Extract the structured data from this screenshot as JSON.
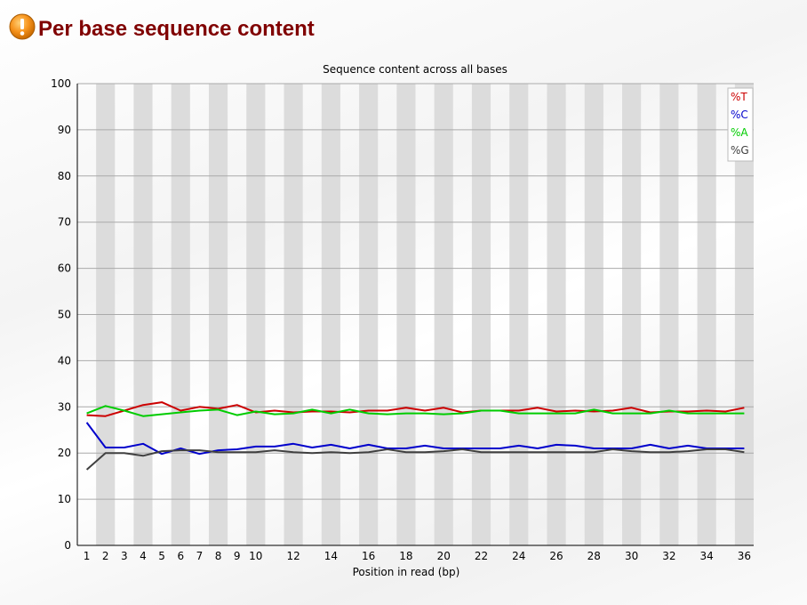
{
  "header": {
    "title": "Per base sequence content",
    "icon": "warning-icon"
  },
  "chart_data": {
    "type": "line",
    "title": "Sequence content across all bases",
    "xlabel": "Position in read (bp)",
    "ylabel": "",
    "ylim": [
      0,
      100
    ],
    "yticks": [
      0,
      10,
      20,
      30,
      40,
      50,
      60,
      70,
      80,
      90,
      100
    ],
    "categories": [
      "1",
      "2",
      "3",
      "4",
      "5",
      "6",
      "7",
      "8",
      "9",
      "10",
      "11",
      "12",
      "13",
      "14",
      "15",
      "16",
      "17",
      "18",
      "19",
      "20",
      "21",
      "22",
      "23",
      "24",
      "25",
      "26",
      "27",
      "28",
      "29",
      "30",
      "31",
      "32",
      "33",
      "34",
      "35",
      "36"
    ],
    "tick_labels": [
      "1",
      "2",
      "3",
      "4",
      "5",
      "6",
      "7",
      "8",
      "9",
      "10",
      "",
      "12",
      "",
      "14",
      "",
      "16",
      "",
      "18",
      "",
      "20",
      "",
      "22",
      "",
      "24",
      "",
      "26",
      "",
      "28",
      "",
      "30",
      "",
      "32",
      "",
      "34",
      "",
      "36"
    ],
    "grid": true,
    "legend_position": "top-right",
    "series": [
      {
        "name": "%T",
        "color": "#cc0000",
        "values": [
          28.2,
          28.0,
          29.2,
          30.4,
          31.0,
          29.2,
          30.0,
          29.6,
          30.4,
          28.8,
          29.2,
          28.8,
          29.0,
          29.0,
          28.8,
          29.2,
          29.2,
          29.8,
          29.2,
          29.8,
          28.8,
          29.2,
          29.2,
          29.2,
          29.8,
          29.0,
          29.2,
          29.0,
          29.2,
          29.8,
          28.8,
          29.0,
          29.0,
          29.2,
          29.0,
          29.8
        ]
      },
      {
        "name": "%C",
        "color": "#0000cc",
        "values": [
          26.6,
          21.2,
          21.2,
          22.0,
          19.8,
          21.0,
          19.8,
          20.6,
          20.8,
          21.4,
          21.4,
          22.0,
          21.2,
          21.8,
          21.0,
          21.8,
          21.0,
          21.0,
          21.6,
          21.0,
          21.0,
          21.0,
          21.0,
          21.6,
          21.0,
          21.8,
          21.6,
          21.0,
          21.0,
          21.0,
          21.8,
          21.0,
          21.6,
          21.0,
          21.0,
          21.0
        ]
      },
      {
        "name": "%A",
        "color": "#00cc00",
        "values": [
          28.6,
          30.2,
          29.2,
          28.0,
          28.4,
          28.8,
          29.2,
          29.4,
          28.2,
          29.0,
          28.4,
          28.6,
          29.4,
          28.6,
          29.4,
          28.6,
          28.4,
          28.6,
          28.6,
          28.4,
          28.6,
          29.2,
          29.2,
          28.6,
          28.6,
          28.6,
          28.6,
          29.4,
          28.6,
          28.6,
          28.6,
          29.2,
          28.6,
          28.6,
          28.6,
          28.6
        ]
      },
      {
        "name": "%G",
        "color": "#404040",
        "values": [
          16.4,
          20.0,
          20.0,
          19.4,
          20.4,
          20.6,
          20.6,
          20.2,
          20.2,
          20.2,
          20.6,
          20.2,
          20.0,
          20.2,
          20.0,
          20.2,
          20.8,
          20.2,
          20.2,
          20.4,
          20.8,
          20.2,
          20.2,
          20.2,
          20.2,
          20.2,
          20.2,
          20.2,
          20.8,
          20.4,
          20.2,
          20.2,
          20.4,
          20.8,
          20.8,
          20.2
        ]
      }
    ]
  }
}
